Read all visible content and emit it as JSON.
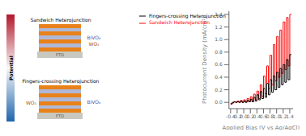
{
  "chart_data": {
    "type": "line",
    "xlabel": "Applied Bias (V vs Ag/AgCl)",
    "ylabel": "Photocurrent Density (mA/cm²)",
    "annotations": [
      "Potential",
      "Sandwich Heterojunction",
      "BiVO₄",
      "WO₃",
      "FTO",
      "Fingers-crossing Heterojunction",
      "WO₃",
      "BiVO₄",
      "FTO"
    ],
    "legend": "upper left",
    "xlim": [
      -0.45,
      1.5
    ],
    "ylim": [
      -0.1,
      1.45
    ],
    "xticks": [
      -0.4,
      -0.2,
      {
        "value": 0.0,
        "label": "0.0"
      },
      0.2,
      0.4,
      0.6,
      0.8,
      {
        "value": 1.0,
        "label": "1.0"
      },
      1.2,
      1.4
    ],
    "yticks": [
      {
        "value": 0.0,
        "label": "0.0"
      },
      0.2,
      0.4,
      0.6,
      0.8,
      {
        "value": 1.0,
        "label": "1.0"
      },
      1.2,
      1.4
    ],
    "x": [
      -0.4,
      -0.35,
      -0.35,
      -0.3,
      -0.3,
      -0.25,
      -0.25,
      -0.2,
      -0.2,
      -0.15,
      -0.15,
      -0.1,
      -0.1,
      -0.05,
      -0.05,
      0.0,
      0.0,
      0.05,
      0.05,
      0.1,
      0.1,
      0.15,
      0.15,
      0.2,
      0.2,
      0.25,
      0.25,
      0.3,
      0.3,
      0.35,
      0.35,
      0.4,
      0.4,
      0.45,
      0.45,
      0.5,
      0.5,
      0.55,
      0.55,
      0.6,
      0.6,
      0.65,
      0.65,
      0.7,
      0.7,
      0.75,
      0.75,
      0.8,
      0.8,
      0.85,
      0.85,
      0.9,
      0.9,
      0.95,
      0.95,
      1.0,
      1.0,
      1.05,
      1.05,
      1.1,
      1.1,
      1.15,
      1.15,
      1.2,
      1.2,
      1.25,
      1.25,
      1.3,
      1.3,
      1.35,
      1.35,
      1.4,
      1.4,
      1.45
    ],
    "series": [
      {
        "name": "Sandwich Heterojunction",
        "color": "#ff0000",
        "values": [
          -0.03,
          -0.03,
          -0.01,
          -0.01,
          0.01,
          0.01,
          0.0,
          0.0,
          0.02,
          0.02,
          0.0,
          0.0,
          0.03,
          0.03,
          0.0,
          0.0,
          0.04,
          0.04,
          0.01,
          0.01,
          0.06,
          0.06,
          0.01,
          0.01,
          0.09,
          0.09,
          0.02,
          0.02,
          0.13,
          0.13,
          0.04,
          0.04,
          0.18,
          0.18,
          0.06,
          0.06,
          0.28,
          0.28,
          0.1,
          0.1,
          0.42,
          0.42,
          0.14,
          0.14,
          0.58,
          0.58,
          0.22,
          0.22,
          0.75,
          0.75,
          0.28,
          0.28,
          0.92,
          0.92,
          0.34,
          0.34,
          1.05,
          1.05,
          0.4,
          0.4,
          1.15,
          1.15,
          0.46,
          0.46,
          1.28,
          1.28,
          0.52,
          0.52,
          1.35,
          1.35,
          0.58,
          0.58,
          1.4,
          1.4
        ]
      },
      {
        "name": "Fingers-crossing Heterojunction",
        "color": "#000000",
        "values": [
          -0.02,
          -0.02,
          0.0,
          0.0,
          0.01,
          0.01,
          0.0,
          0.0,
          0.01,
          0.01,
          0.0,
          0.0,
          0.02,
          0.02,
          0.0,
          0.0,
          0.02,
          0.02,
          0.0,
          0.0,
          0.03,
          0.03,
          0.01,
          0.01,
          0.05,
          0.05,
          0.01,
          0.01,
          0.08,
          0.08,
          0.02,
          0.02,
          0.12,
          0.12,
          0.04,
          0.04,
          0.17,
          0.17,
          0.06,
          0.06,
          0.22,
          0.22,
          0.08,
          0.08,
          0.3,
          0.3,
          0.12,
          0.12,
          0.36,
          0.36,
          0.16,
          0.16,
          0.42,
          0.42,
          0.2,
          0.2,
          0.48,
          0.48,
          0.24,
          0.24,
          0.54,
          0.54,
          0.28,
          0.28,
          0.6,
          0.6,
          0.32,
          0.32,
          0.68,
          0.68,
          0.36,
          0.36,
          0.76,
          0.76
        ]
      }
    ]
  }
}
